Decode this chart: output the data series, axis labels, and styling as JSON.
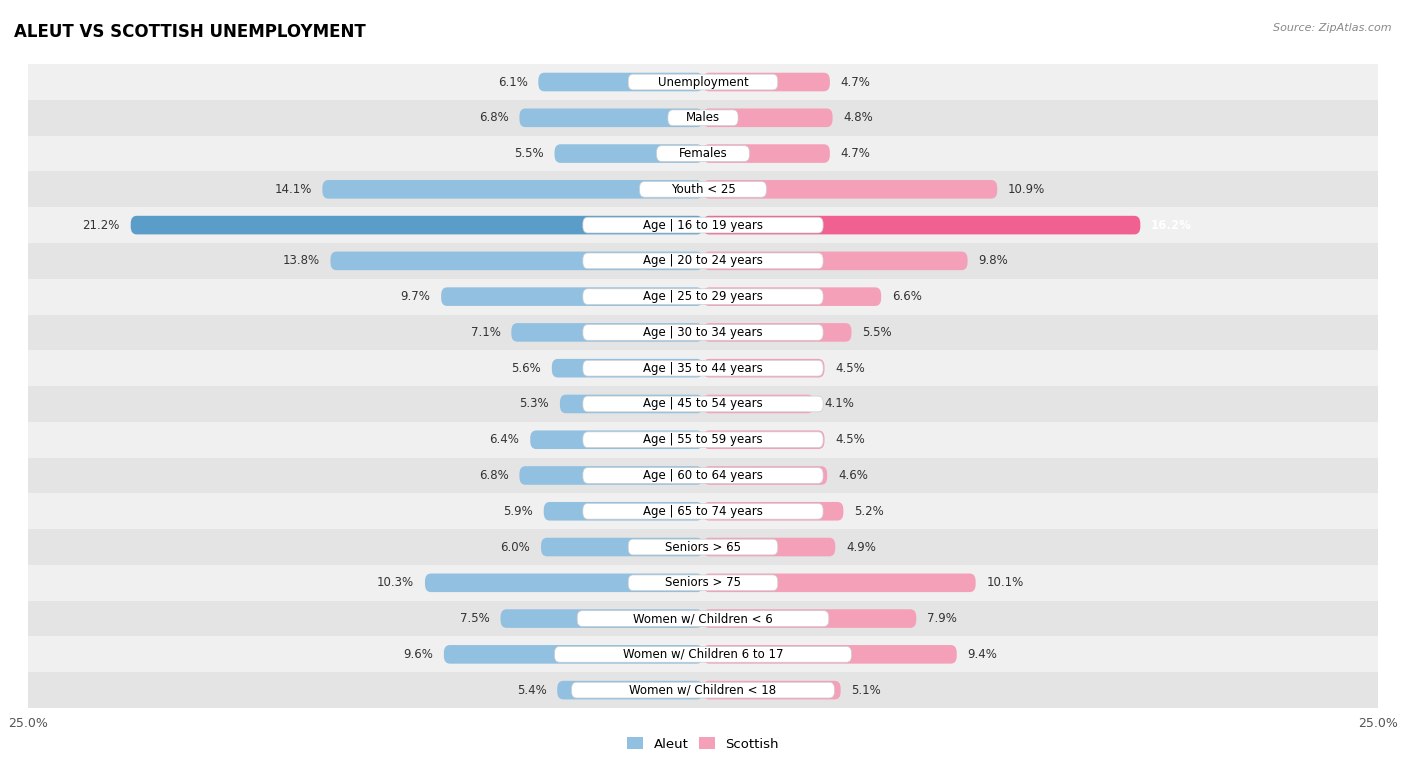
{
  "title": "ALEUT VS SCOTTISH UNEMPLOYMENT",
  "source": "Source: ZipAtlas.com",
  "categories": [
    "Unemployment",
    "Males",
    "Females",
    "Youth < 25",
    "Age | 16 to 19 years",
    "Age | 20 to 24 years",
    "Age | 25 to 29 years",
    "Age | 30 to 34 years",
    "Age | 35 to 44 years",
    "Age | 45 to 54 years",
    "Age | 55 to 59 years",
    "Age | 60 to 64 years",
    "Age | 65 to 74 years",
    "Seniors > 65",
    "Seniors > 75",
    "Women w/ Children < 6",
    "Women w/ Children 6 to 17",
    "Women w/ Children < 18"
  ],
  "aleut_values": [
    6.1,
    6.8,
    5.5,
    14.1,
    21.2,
    13.8,
    9.7,
    7.1,
    5.6,
    5.3,
    6.4,
    6.8,
    5.9,
    6.0,
    10.3,
    7.5,
    9.6,
    5.4
  ],
  "scottish_values": [
    4.7,
    4.8,
    4.7,
    10.9,
    16.2,
    9.8,
    6.6,
    5.5,
    4.5,
    4.1,
    4.5,
    4.6,
    5.2,
    4.9,
    10.1,
    7.9,
    9.4,
    5.1
  ],
  "aleut_color": "#92c0e0",
  "scottish_color": "#f4a0b8",
  "aleut_highlight_color": "#5b9dc9",
  "scottish_highlight_color": "#f06090",
  "highlight_row": 4,
  "xlim": 25.0,
  "bar_height": 0.52,
  "row_bg_colors": [
    "#f0f0f0",
    "#e4e4e4"
  ],
  "label_fontsize": 8.5,
  "title_fontsize": 12,
  "axis_tick_fontsize": 9,
  "value_label_fontsize": 8.5
}
